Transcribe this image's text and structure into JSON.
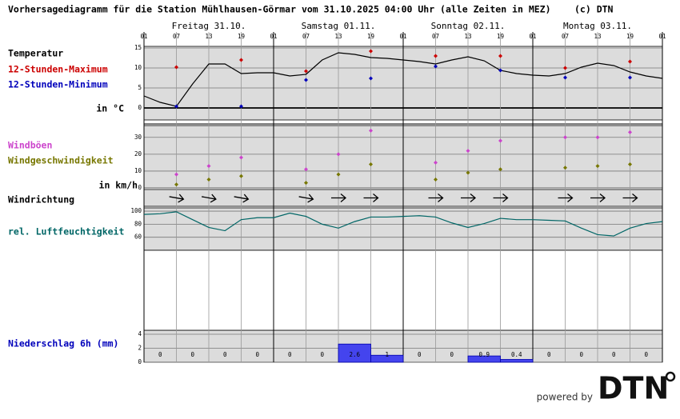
{
  "chart_data": {
    "type": "line",
    "title": "Vorhersagediagramm für die Station Mühlhausen-Görmar vom 31.10.2025 04:00 Uhr (alle Zeiten in MEZ)",
    "copyright": "(c) DTN",
    "days": [
      "Freitag 31.10.",
      "Samstag 01.11.",
      "Sonntag 02.11.",
      "Montag 03.11."
    ],
    "hour_ticks": [
      "01",
      "07",
      "13",
      "19",
      "01",
      "07",
      "13",
      "19",
      "01",
      "07",
      "13",
      "19",
      "01",
      "07",
      "13",
      "19",
      "01"
    ],
    "temperature": {
      "label": "Temperatur",
      "unit_label": "in °C",
      "ylim": [
        -3,
        15.4
      ],
      "yticks": [
        0,
        5,
        10,
        15
      ],
      "line": {
        "color": "#000000",
        "values": [
          3,
          1.4,
          0.4,
          6,
          11,
          11,
          8.6,
          8.8,
          8.8,
          8,
          8.4,
          12,
          13.8,
          13.4,
          12.6,
          12.4,
          12,
          11.6,
          11,
          12,
          12.8,
          11.8,
          9.4,
          8.6,
          8.2,
          8,
          8.6,
          10.2,
          11.2,
          10.6,
          9,
          8,
          7.4
        ]
      },
      "series": [
        {
          "name": "12-Stunden-Maximum",
          "color": "#cc0000",
          "values": [
            null,
            10.2,
            null,
            12,
            null,
            9.2,
            null,
            14.2,
            null,
            13,
            null,
            13,
            null,
            10,
            null,
            11.6,
            null
          ]
        },
        {
          "name": "12-Stunden-Minimum",
          "color": "#0000bb",
          "values": [
            null,
            0.4,
            null,
            0.4,
            null,
            7,
            null,
            7.4,
            null,
            10.4,
            null,
            9.4,
            null,
            7.6,
            null,
            7.6,
            null
          ]
        }
      ]
    },
    "wind": {
      "unit_label": "in km/h",
      "ylim": [
        0,
        37
      ],
      "yticks": [
        0,
        10,
        20,
        30
      ],
      "series": [
        {
          "name": "Windböen",
          "color": "#cc44cc",
          "values": [
            null,
            8,
            13,
            18,
            null,
            11,
            20,
            34,
            null,
            15,
            22,
            28,
            null,
            30,
            30,
            33,
            null
          ]
        },
        {
          "name": "Windgeschwindigkeit",
          "color": "#777700",
          "values": [
            null,
            2,
            5,
            7,
            null,
            3,
            8,
            14,
            null,
            5,
            9,
            11,
            null,
            12,
            13,
            14,
            null
          ]
        }
      ]
    },
    "wind_direction": {
      "label": "Windrichtung",
      "values": [
        null,
        280,
        280,
        280,
        null,
        280,
        270,
        270,
        null,
        270,
        270,
        270,
        null,
        270,
        270,
        270,
        null
      ]
    },
    "humidity": {
      "label": "rel. Luftfeuchtigkeit",
      "color": "#006666",
      "ylim": [
        40,
        105
      ],
      "yticks": [
        60,
        80,
        100
      ],
      "values": [
        95,
        96,
        99,
        87,
        75,
        70,
        87,
        90,
        90,
        97,
        92,
        80,
        74,
        84,
        91,
        91,
        92,
        93,
        91,
        82,
        75,
        81,
        89,
        87,
        87,
        86,
        85,
        74,
        64,
        62,
        74,
        81,
        84
      ]
    },
    "precipitation": {
      "label": "Niederschlag 6h (mm)",
      "color": "#4444ee",
      "ylim": [
        0,
        4.57
      ],
      "yticks": [
        0,
        2,
        4
      ],
      "values": [
        0,
        0,
        0,
        0,
        0,
        0,
        2.6,
        1,
        0,
        0,
        0.9,
        0.4,
        0,
        0,
        0,
        0
      ]
    },
    "footer": {
      "powered": "powered by",
      "logo": "DTN"
    }
  }
}
